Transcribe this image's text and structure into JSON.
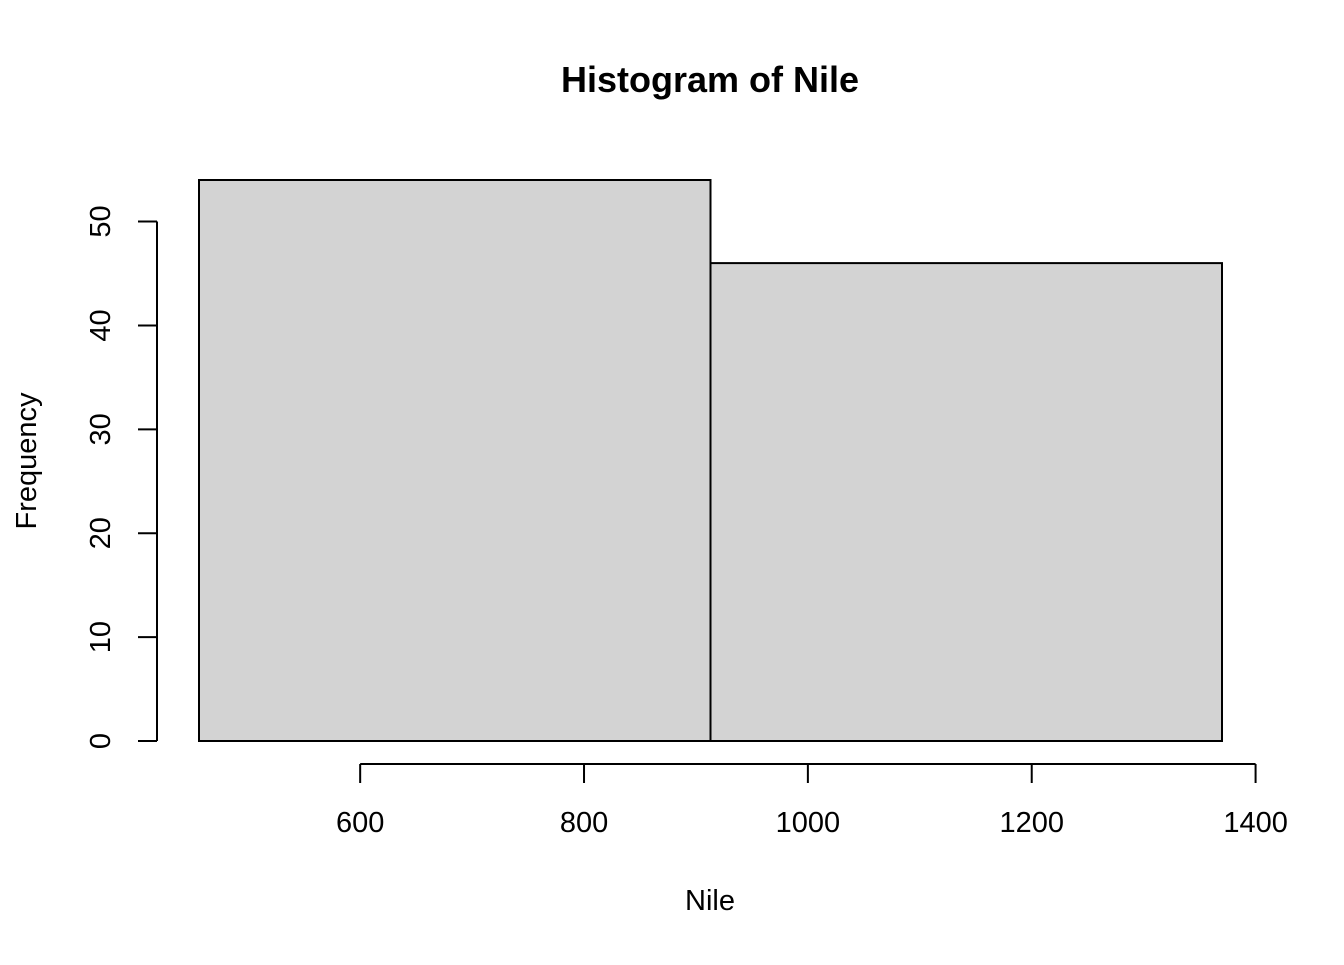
{
  "chart_data": {
    "type": "bar",
    "title": "Histogram of Nile",
    "xlabel": "Nile",
    "ylabel": "Frequency",
    "bins": [
      {
        "start": 456,
        "end": 913,
        "count": 54
      },
      {
        "start": 913,
        "end": 1370,
        "count": 46
      }
    ],
    "xlim": [
      456,
      1370
    ],
    "ylim": [
      0,
      54
    ],
    "x_ticks": [
      600,
      800,
      1000,
      1200,
      1400
    ],
    "x_tick_labels": [
      "600",
      "800",
      "1000",
      "1200",
      "1400"
    ],
    "y_ticks": [
      0,
      10,
      20,
      30,
      40,
      50
    ],
    "y_tick_labels": [
      "0",
      "10",
      "20",
      "30",
      "40",
      "50"
    ],
    "bar_fill": "#d3d3d3",
    "bar_stroke": "#000000",
    "grid": false,
    "legend": "none"
  }
}
